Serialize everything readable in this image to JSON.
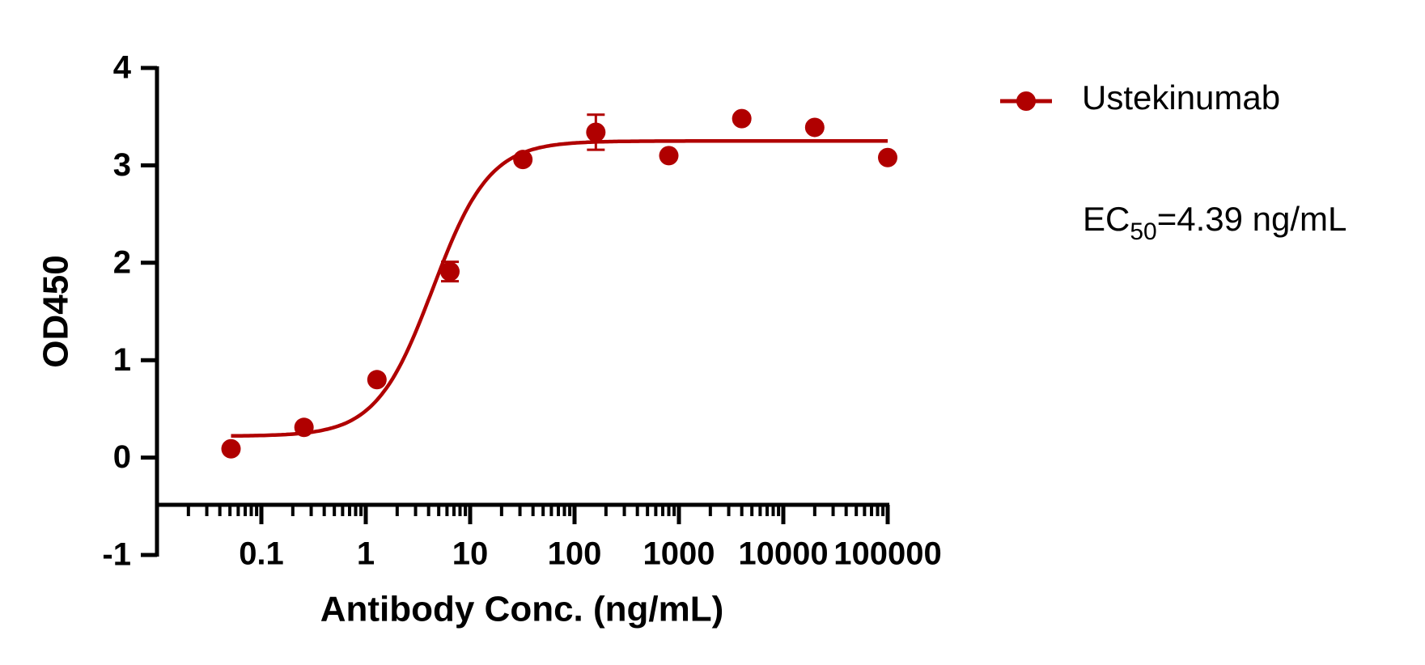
{
  "chart_data": {
    "type": "scatter",
    "xlabel": "Antibody Conc. (ng/mL)",
    "ylabel": "OD450",
    "xscale": "log",
    "xlim": [
      0.01,
      100000
    ],
    "xticks": [
      0.1,
      1,
      10,
      100,
      1000,
      10000,
      100000
    ],
    "ylim": [
      -1,
      4
    ],
    "yticks": [
      -1,
      0,
      1,
      2,
      3,
      4
    ],
    "legend": "right",
    "series": [
      {
        "name": "Ustekinumab",
        "color": "#b00000",
        "x": [
          0.0512,
          0.256,
          1.28,
          6.4,
          32,
          160,
          800,
          4000,
          20000,
          100000
        ],
        "values": [
          0.09,
          0.31,
          0.8,
          1.91,
          3.06,
          3.34,
          3.1,
          3.48,
          3.39,
          3.08
        ],
        "errors": [
          0.02,
          0.02,
          0.03,
          0.1,
          0.03,
          0.18,
          0.02,
          0.03,
          0.03,
          0.02
        ],
        "fit": {
          "bottom": 0.22,
          "top": 3.25,
          "ec50": 4.39,
          "hill": 1.6
        }
      }
    ],
    "annotation": {
      "prefix": "EC",
      "subscript": "50",
      "text": "=4.39 ng/mL"
    }
  }
}
